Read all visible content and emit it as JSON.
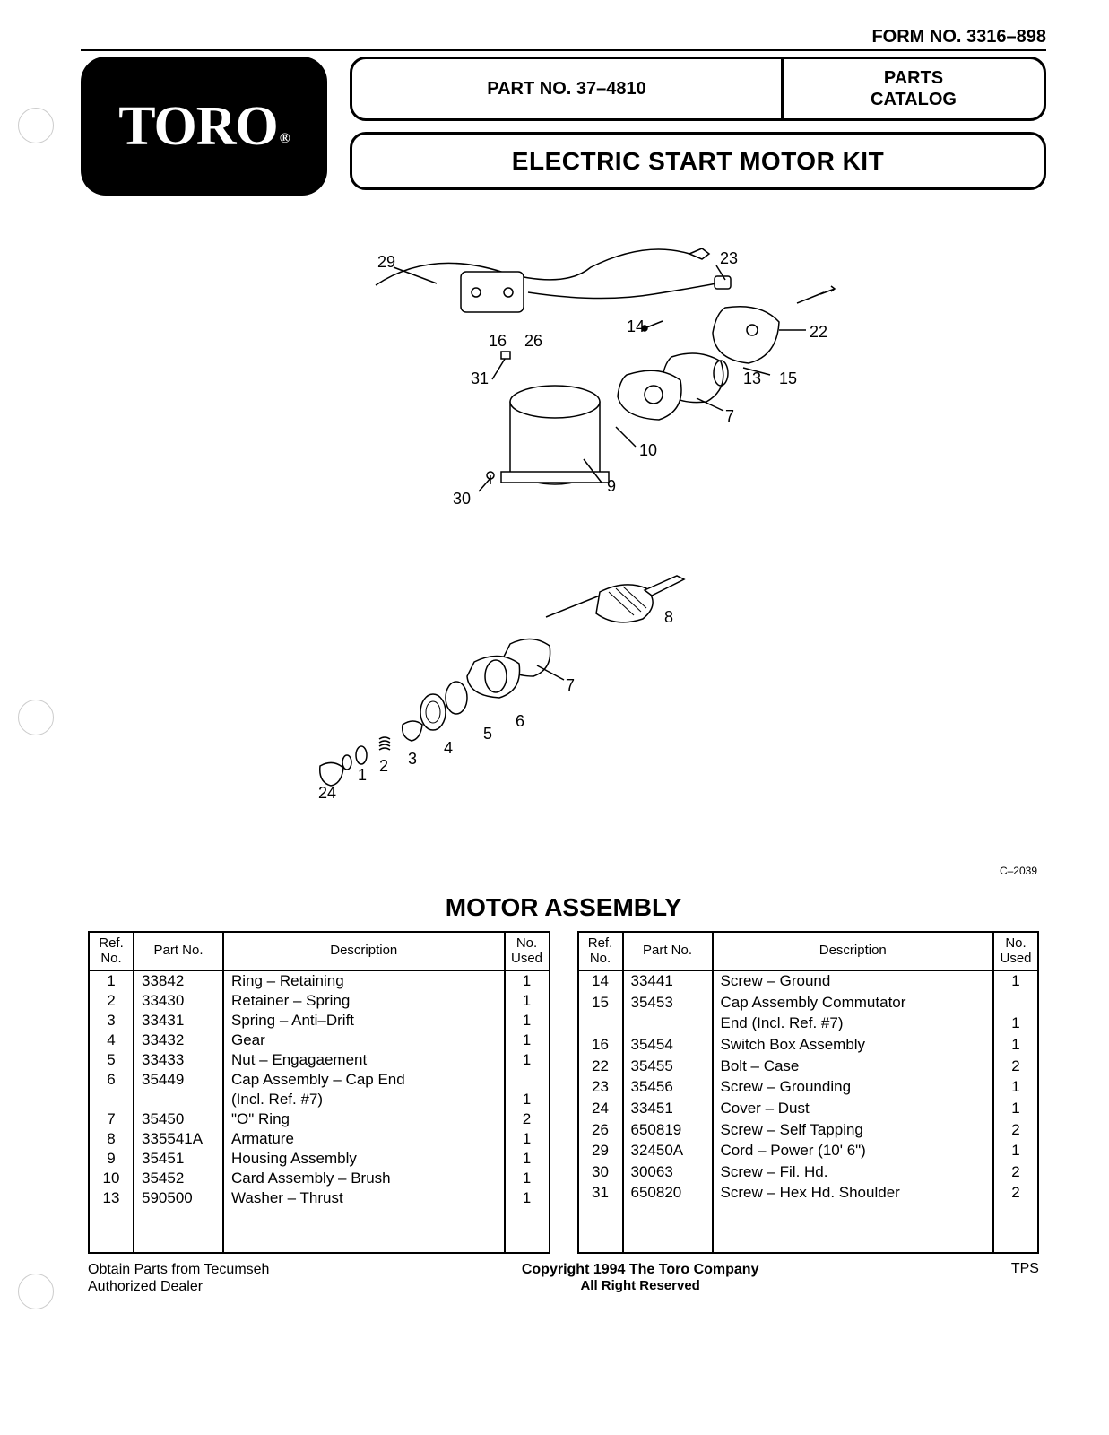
{
  "form_no": "FORM NO. 3316–898",
  "logo": {
    "text": "TORO",
    "reg": "®"
  },
  "part_no_label": "PART NO. 37–4810",
  "catalog_label_1": "PARTS",
  "catalog_label_2": "CATALOG",
  "title": "ELECTRIC START MOTOR KIT",
  "section_title": "MOTOR ASSEMBLY",
  "diagram_code": "C–2039",
  "diagram_callouts_upper": [
    "29",
    "23",
    "14",
    "22",
    "16",
    "26",
    "13",
    "15",
    "31",
    "7",
    "10",
    "9",
    "30"
  ],
  "diagram_callouts_lower": [
    "8",
    "7",
    "6",
    "5",
    "4",
    "3",
    "2",
    "1",
    "24"
  ],
  "table_headers": {
    "ref": "Ref.\nNo.",
    "part": "Part No.",
    "desc": "Description",
    "used": "No.\nUsed"
  },
  "table_left": [
    {
      "ref": "1",
      "part": "33842",
      "desc": "Ring – Retaining",
      "used": "1"
    },
    {
      "ref": "2",
      "part": "33430",
      "desc": "Retainer – Spring",
      "used": "1"
    },
    {
      "ref": "3",
      "part": "33431",
      "desc": "Spring – Anti–Drift",
      "used": "1"
    },
    {
      "ref": "4",
      "part": "33432",
      "desc": "Gear",
      "used": "1"
    },
    {
      "ref": "5",
      "part": "33433",
      "desc": "Nut – Engagaement",
      "used": "1"
    },
    {
      "ref": "6",
      "part": "35449",
      "desc": "Cap Assembly – Cap End",
      "used": ""
    },
    {
      "ref": "",
      "part": "",
      "desc": "(Incl. Ref. #7)",
      "used": "1"
    },
    {
      "ref": "7",
      "part": "35450",
      "desc": "\"O\" Ring",
      "used": "2"
    },
    {
      "ref": "8",
      "part": "335541A",
      "desc": "Armature",
      "used": "1"
    },
    {
      "ref": "9",
      "part": "35451",
      "desc": "Housing Assembly",
      "used": "1"
    },
    {
      "ref": "10",
      "part": "35452",
      "desc": "Card Assembly – Brush",
      "used": "1"
    },
    {
      "ref": "13",
      "part": "590500",
      "desc": "Washer – Thrust",
      "used": "1"
    }
  ],
  "table_right": [
    {
      "ref": "14",
      "part": "33441",
      "desc": "Screw – Ground",
      "used": "1"
    },
    {
      "ref": "15",
      "part": "35453",
      "desc": "Cap Assembly Commutator",
      "used": ""
    },
    {
      "ref": "",
      "part": "",
      "desc": "End (Incl. Ref. #7)",
      "used": "1"
    },
    {
      "ref": "16",
      "part": "35454",
      "desc": "Switch Box Assembly",
      "used": "1"
    },
    {
      "ref": "22",
      "part": "35455",
      "desc": "Bolt – Case",
      "used": "2"
    },
    {
      "ref": "23",
      "part": "35456",
      "desc": "Screw – Grounding",
      "used": "1"
    },
    {
      "ref": "24",
      "part": "33451",
      "desc": "Cover – Dust",
      "used": "1"
    },
    {
      "ref": "26",
      "part": "650819",
      "desc": "Screw – Self Tapping",
      "used": "2"
    },
    {
      "ref": "29",
      "part": "32450A",
      "desc": "Cord – Power (10' 6\")",
      "used": "1"
    },
    {
      "ref": "30",
      "part": "30063",
      "desc": "Screw – Fil. Hd.",
      "used": "2"
    },
    {
      "ref": "31",
      "part": "650820",
      "desc": "Screw – Hex Hd. Shoulder",
      "used": "2"
    }
  ],
  "footer": {
    "left_1": "Obtain Parts from Tecumseh",
    "left_2": "Authorized Dealer",
    "center_1": "Copyright 1994 The Toro Company",
    "center_2": "All Right Reserved",
    "right": "TPS"
  },
  "colors": {
    "page_bg": "#ffffff",
    "text": "#000000",
    "logo_bg": "#000000",
    "logo_fg": "#ffffff",
    "border": "#000000"
  }
}
